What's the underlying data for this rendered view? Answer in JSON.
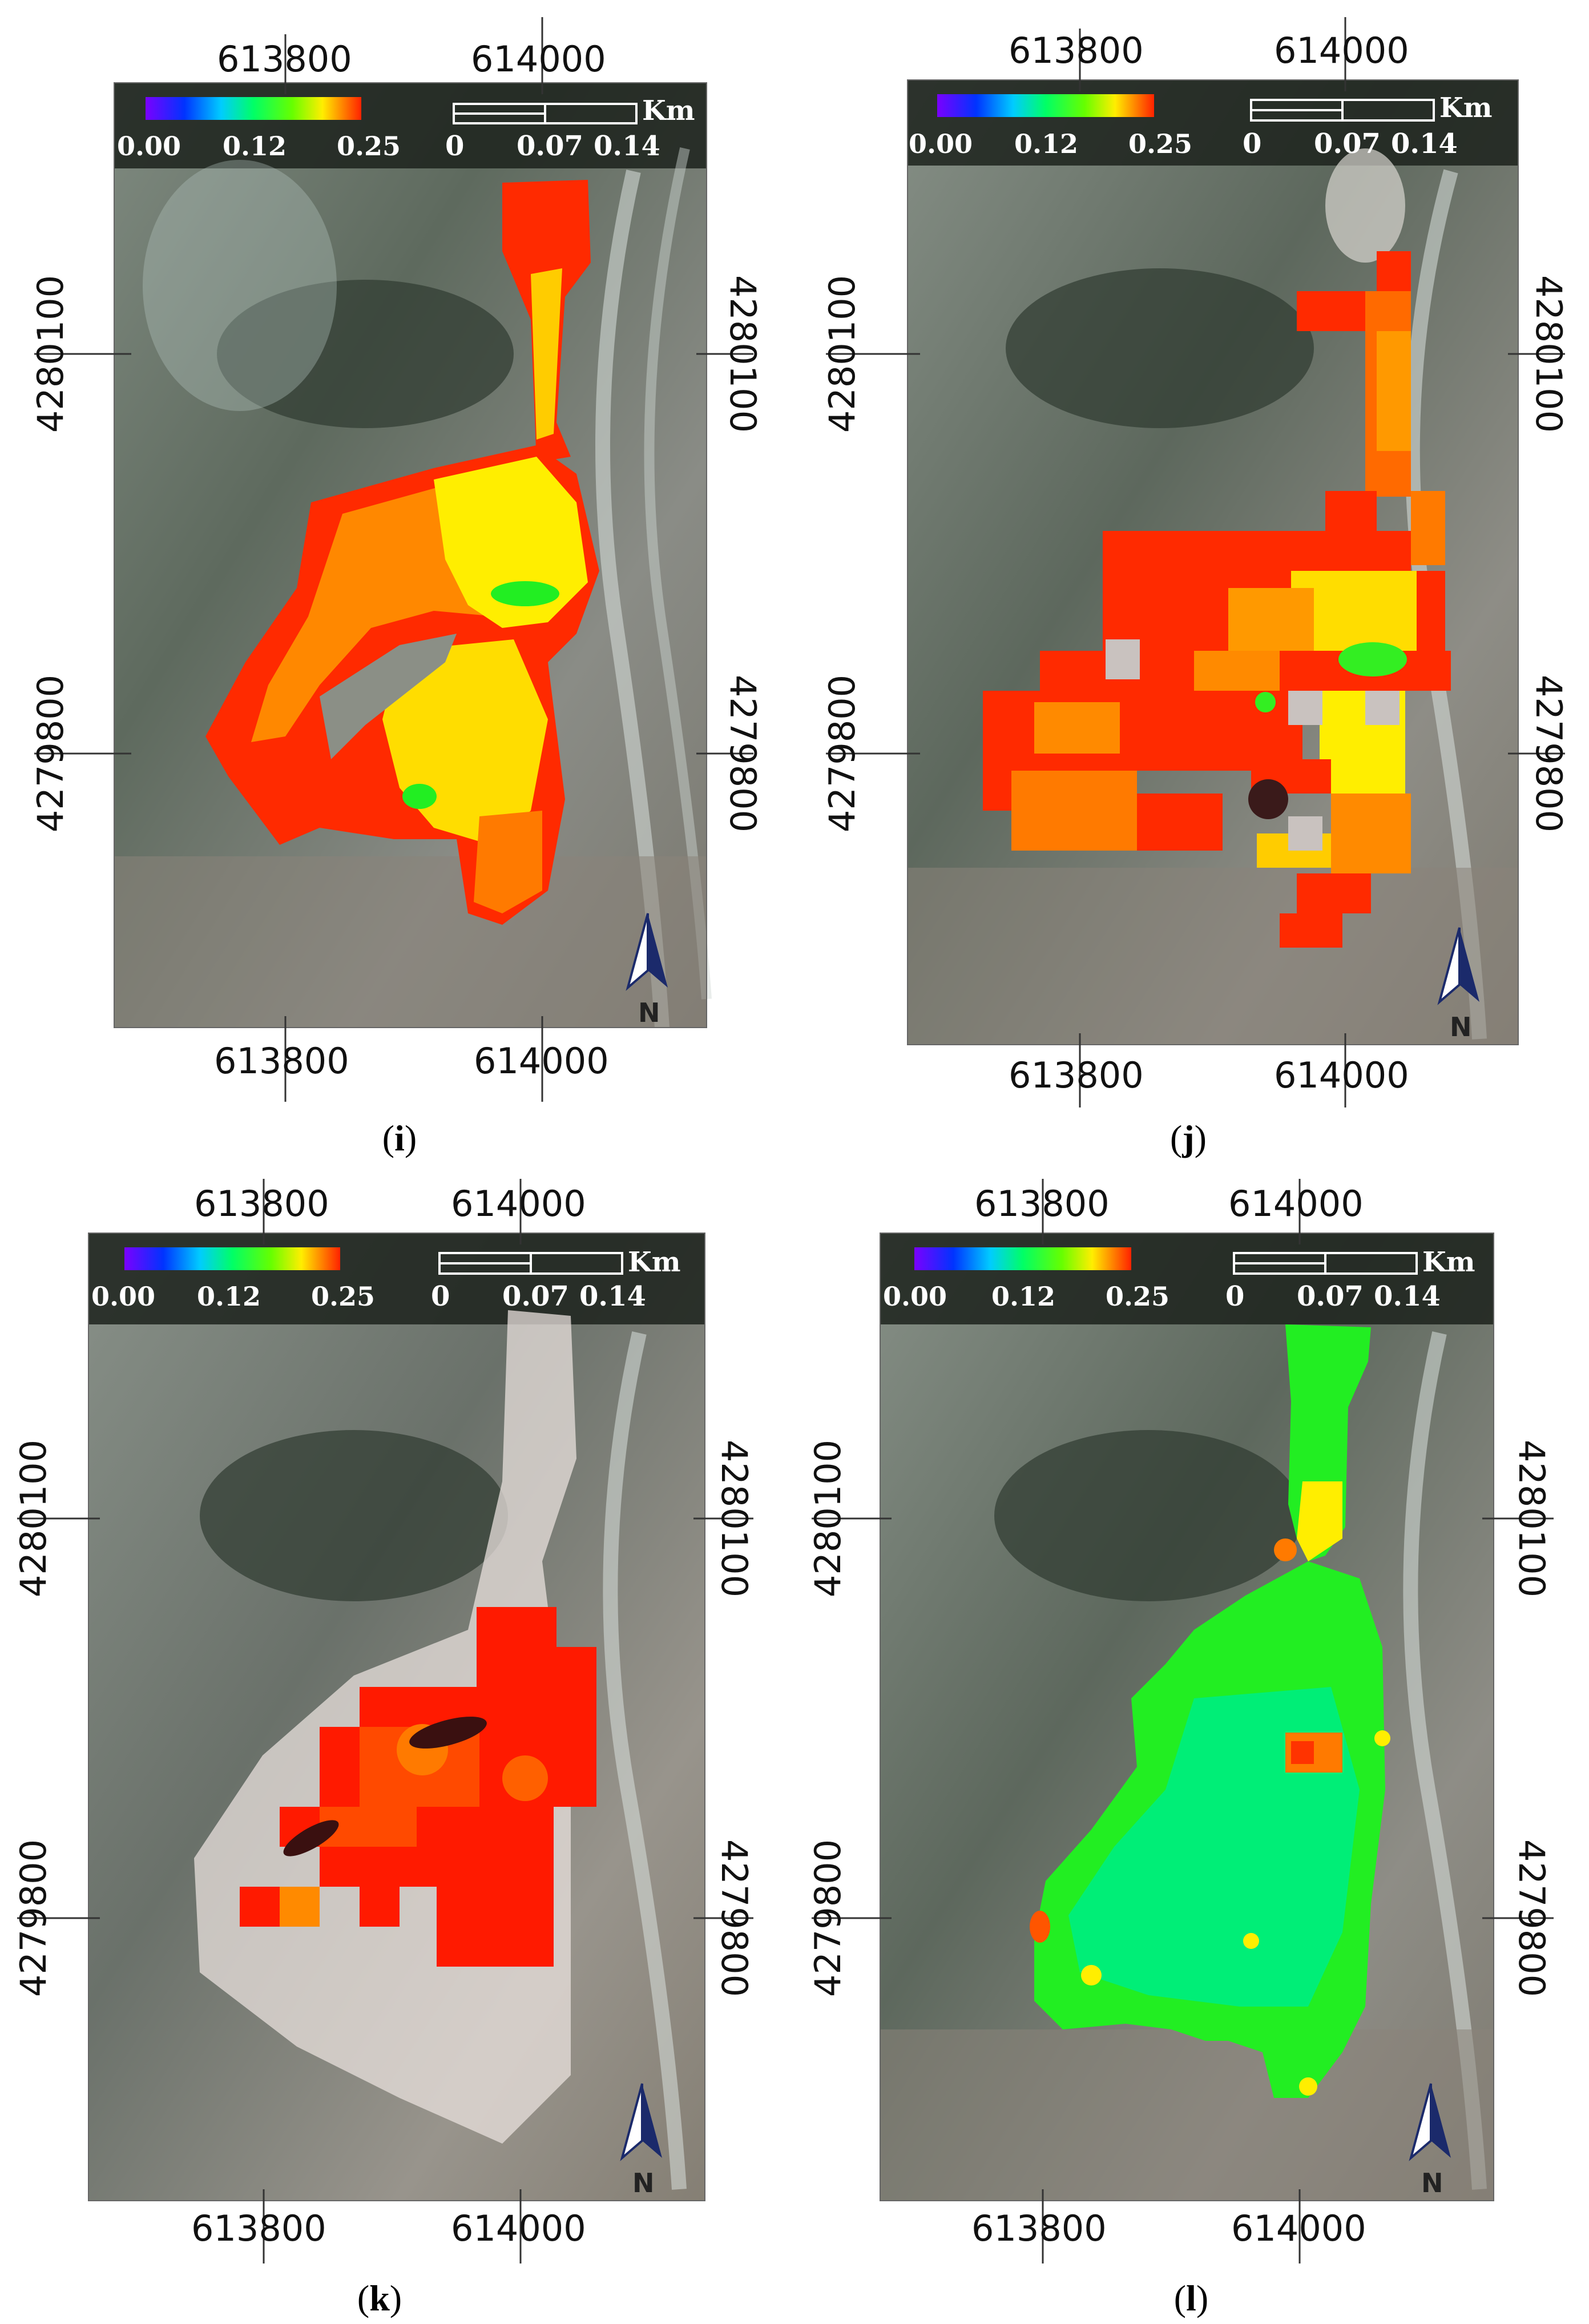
{
  "panels": [
    {
      "id": "i",
      "caption": "i",
      "x_ticks": [
        "613800",
        "614000"
      ],
      "y_ticks": [
        "4280100",
        "4279800"
      ],
      "legend": {
        "min": "0.00",
        "mid": "0.12",
        "max": "0.25"
      },
      "scalebar": {
        "labels": [
          "0",
          "0.07",
          "0.14"
        ],
        "unit": "Km"
      },
      "north_label": "N"
    },
    {
      "id": "j",
      "caption": "j",
      "x_ticks": [
        "613800",
        "614000"
      ],
      "y_ticks": [
        "4280100",
        "4279800"
      ],
      "legend": {
        "min": "0.00",
        "mid": "0.12",
        "max": "0.25"
      },
      "scalebar": {
        "labels": [
          "0",
          "0.07",
          "0.14"
        ],
        "unit": "Km"
      },
      "north_label": "N"
    },
    {
      "id": "k",
      "caption": "k",
      "x_ticks": [
        "613800",
        "614000"
      ],
      "y_ticks": [
        "4280100",
        "4279800"
      ],
      "legend": {
        "min": "0.00",
        "mid": "0.12",
        "max": "0.25"
      },
      "scalebar": {
        "labels": [
          "0",
          "0.07",
          "0.14"
        ],
        "unit": "Km"
      },
      "north_label": "N"
    },
    {
      "id": "l",
      "caption": "l",
      "x_ticks": [
        "613800",
        "614000"
      ],
      "y_ticks": [
        "4280100",
        "4279800"
      ],
      "legend": {
        "min": "0.00",
        "mid": "0.12",
        "max": "0.25"
      },
      "scalebar": {
        "labels": [
          "0",
          "0.07",
          "0.14"
        ],
        "unit": "Km"
      },
      "north_label": "N"
    }
  ],
  "colors": {
    "red": "#ff1a00",
    "orange": "#ff8a00",
    "yellow": "#ffee00",
    "green": "#22ee22",
    "cyan_green": "#00ee77",
    "imagery_light": "#9aa49a",
    "imagery_dark": "#2e352e"
  }
}
